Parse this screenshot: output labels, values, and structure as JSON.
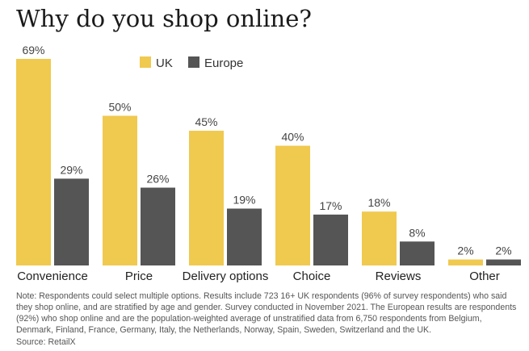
{
  "chart_data": {
    "type": "bar",
    "title": "Why do you shop online?",
    "categories": [
      "Convenience",
      "Price",
      "Delivery options",
      "Choice",
      "Reviews",
      "Other"
    ],
    "series": [
      {
        "name": "UK",
        "color": "#f0c94f",
        "values": [
          69,
          50,
          45,
          40,
          18,
          2
        ],
        "labels": [
          "69%",
          "50%",
          "45%",
          "40%",
          "18%",
          "2%"
        ]
      },
      {
        "name": "Europe",
        "color": "#555555",
        "values": [
          29,
          26,
          19,
          17,
          8,
          2
        ],
        "labels": [
          "29%",
          "26%",
          "19%",
          "17%",
          "8%",
          "2%"
        ]
      }
    ],
    "ylim": [
      0,
      69
    ],
    "grid": false,
    "legend_position": "top-left",
    "xlabel": "",
    "ylabel": ""
  },
  "note": "Note: Respondents could select multiple options. Results include 723 16+ UK respondents (96% of survey respondents) who said they shop online, and are stratified by age and gender. Survey conducted in November 2021. The European results are respondents (92%) who shop online and are the population-weighted average of unstratified data from 6,750 respondents from Belgium, Denmark, Finland, France, Germany, Italy, the Netherlands, Norway, Spain, Sweden, Switzerland and the UK.",
  "source": "Source: RetailX"
}
